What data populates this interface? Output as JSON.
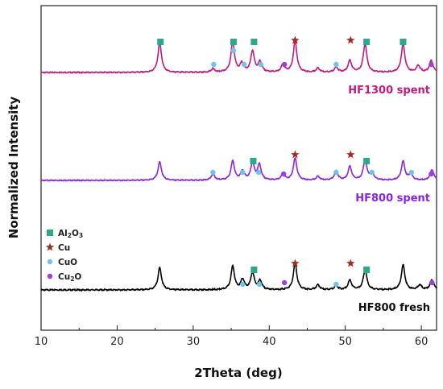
{
  "chart_data": {
    "type": "line",
    "xlabel": "2Theta (deg)",
    "ylabel": "Normalized Intensity",
    "xlim": [
      10,
      62
    ],
    "x_ticks": [
      10,
      20,
      30,
      40,
      50,
      60
    ],
    "grid": false,
    "legend_position": "left-middle",
    "series": [
      {
        "name": "HF800 fresh",
        "color": "#000000",
        "peaks": [
          [
            25.6,
            0.55
          ],
          [
            35.2,
            0.58
          ],
          [
            36.5,
            0.25
          ],
          [
            37.8,
            0.42
          ],
          [
            38.8,
            0.22
          ],
          [
            43.4,
            0.66
          ],
          [
            46.4,
            0.12
          ],
          [
            48.8,
            0.1
          ],
          [
            50.6,
            0.24
          ],
          [
            52.6,
            0.5
          ],
          [
            57.6,
            0.62
          ],
          [
            59.8,
            0.12
          ],
          [
            61.4,
            0.25
          ]
        ]
      },
      {
        "name": "HF800 spent",
        "color": "#8B24E0",
        "peaks": [
          [
            25.6,
            0.6
          ],
          [
            32.6,
            0.2
          ],
          [
            35.2,
            0.62
          ],
          [
            36.5,
            0.3
          ],
          [
            37.8,
            0.55
          ],
          [
            38.7,
            0.5
          ],
          [
            41.8,
            0.2
          ],
          [
            43.4,
            0.72
          ],
          [
            46.4,
            0.12
          ],
          [
            48.8,
            0.3
          ],
          [
            50.6,
            0.45
          ],
          [
            52.6,
            0.65
          ],
          [
            53.5,
            0.25
          ],
          [
            57.6,
            0.62
          ],
          [
            58.6,
            0.2
          ],
          [
            61.4,
            0.35
          ]
        ]
      },
      {
        "name": "HF1300 spent",
        "color": "#C2197E",
        "peaks": [
          [
            25.6,
            0.88
          ],
          [
            32.6,
            0.1
          ],
          [
            35.2,
            0.9
          ],
          [
            36.4,
            0.25
          ],
          [
            37.8,
            0.62
          ],
          [
            38.8,
            0.3
          ],
          [
            41.8,
            0.22
          ],
          [
            43.4,
            0.92
          ],
          [
            46.4,
            0.12
          ],
          [
            48.8,
            0.15
          ],
          [
            50.6,
            0.35
          ],
          [
            52.6,
            0.85
          ],
          [
            57.6,
            0.85
          ],
          [
            59.6,
            0.2
          ],
          [
            61.3,
            0.35
          ]
        ]
      }
    ],
    "legend": [
      {
        "label": "Al2O3",
        "symbol": "square",
        "color": "#2EA88A"
      },
      {
        "label": "Cu",
        "symbol": "star",
        "color": "#A52A1F"
      },
      {
        "label": "CuO",
        "symbol": "circle",
        "color": "#6CC4EF"
      },
      {
        "label": "Cu2O",
        "symbol": "circle",
        "color": "#9B40D8"
      }
    ],
    "markers": {
      "HF800 fresh": {
        "Al2O3": [
          38.0,
          52.8
        ],
        "Cu": [
          43.4,
          50.7
        ],
        "CuO": [
          36.5,
          38.7,
          48.8
        ],
        "Cu2O": [
          42.0,
          61.4
        ]
      },
      "HF800 spent": {
        "Al2O3": [
          37.9,
          52.8
        ],
        "Cu": [
          43.4,
          50.7
        ],
        "CuO": [
          32.6,
          36.5,
          38.6,
          48.8,
          53.5,
          58.7
        ],
        "Cu2O": [
          41.9,
          61.3
        ]
      },
      "HF1300 spent": {
        "Al2O3": [
          25.7,
          35.3,
          38.0,
          52.8,
          57.6
        ],
        "Cu": [
          43.4,
          50.7
        ],
        "CuO": [
          32.7,
          35.3,
          36.7,
          38.9,
          48.8
        ],
        "Cu2O": [
          42.0,
          61.3
        ]
      }
    }
  }
}
